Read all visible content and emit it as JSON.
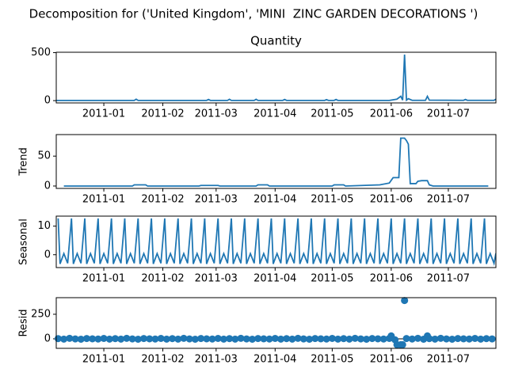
{
  "title": "Decomposition for ('United Kingdom', 'MINI  ZINC GARDEN DECORATIONS ')",
  "chart_data": [
    {
      "type": "line",
      "title": "Quantity",
      "color": "#1f77b4",
      "x": [
        -25,
        16,
        17,
        18,
        54,
        55,
        56,
        65,
        66,
        67,
        79,
        80,
        81,
        94,
        95,
        96,
        116,
        117,
        118,
        121,
        122,
        123,
        150,
        154,
        156,
        157,
        158,
        159,
        160,
        162,
        169,
        170,
        171,
        189,
        190,
        191,
        205,
        206
      ],
      "values": [
        2,
        2,
        15,
        2,
        2,
        12,
        2,
        2,
        14,
        2,
        2,
        14,
        2,
        2,
        12,
        2,
        2,
        10,
        2,
        2,
        12,
        2,
        2,
        15,
        45,
        5,
        480,
        5,
        20,
        3,
        3,
        45,
        5,
        3,
        12,
        3,
        3,
        15
      ],
      "xlim": [
        -25,
        206
      ],
      "ylim": [
        -24,
        504
      ],
      "xticks": [
        {
          "value": 0,
          "label": "2011-01"
        },
        {
          "value": 31,
          "label": "2011-02"
        },
        {
          "value": 59,
          "label": "2011-03"
        },
        {
          "value": 90,
          "label": "2011-04"
        },
        {
          "value": 120,
          "label": "2011-05"
        },
        {
          "value": 151,
          "label": "2011-06"
        },
        {
          "value": 181,
          "label": "2011-07"
        }
      ],
      "yticks": [
        0,
        500
      ]
    },
    {
      "type": "line",
      "y_label": "Trend",
      "color": "#1f77b4",
      "x": [
        -21,
        15,
        16,
        22,
        23,
        50,
        51,
        60,
        61,
        80,
        81,
        86,
        87,
        120,
        121,
        126,
        127,
        145,
        150,
        152,
        155,
        156,
        158,
        159,
        160,
        161,
        164,
        165,
        167,
        170,
        171,
        173,
        202
      ],
      "values": [
        0,
        0,
        2,
        2,
        0,
        0,
        1,
        1,
        0,
        0,
        2,
        2,
        0,
        0,
        2,
        2,
        0,
        2,
        5,
        14,
        14,
        80,
        80,
        76,
        70,
        4,
        4,
        8,
        9,
        9,
        2,
        0,
        0
      ],
      "xlim": [
        -25,
        206
      ],
      "ylim": [
        -4,
        86
      ],
      "xticks": [
        {
          "value": 0,
          "label": "2011-01"
        },
        {
          "value": 31,
          "label": "2011-02"
        },
        {
          "value": 59,
          "label": "2011-03"
        },
        {
          "value": 90,
          "label": "2011-04"
        },
        {
          "value": 120,
          "label": "2011-05"
        },
        {
          "value": 151,
          "label": "2011-06"
        },
        {
          "value": 181,
          "label": "2011-07"
        }
      ],
      "yticks": [
        0,
        50
      ]
    },
    {
      "type": "line",
      "y_label": "Seasonal",
      "color": "#1f77b4",
      "x": [
        -24,
        -23,
        -21,
        -19,
        -17,
        -16,
        -14,
        -12,
        -10,
        -9,
        -7,
        -5,
        -3,
        -2,
        0,
        2,
        4,
        5,
        7,
        9,
        11,
        12,
        14,
        16,
        18,
        19,
        21,
        23,
        25,
        26,
        28,
        30,
        32,
        33,
        35,
        37,
        39,
        40,
        42,
        44,
        46,
        47,
        49,
        51,
        53,
        54,
        56,
        58,
        60,
        61,
        63,
        65,
        67,
        68,
        70,
        72,
        74,
        75,
        77,
        79,
        81,
        82,
        84,
        86,
        88,
        89,
        91,
        93,
        95,
        96,
        98,
        100,
        102,
        103,
        105,
        107,
        109,
        110,
        112,
        114,
        116,
        117,
        119,
        121,
        123,
        124,
        126,
        128,
        130,
        131,
        133,
        135,
        137,
        138,
        140,
        142,
        144,
        145,
        147,
        149,
        151,
        152,
        154,
        156,
        158,
        159,
        161,
        163,
        165,
        166,
        168,
        170,
        172,
        173,
        175,
        177,
        179,
        180,
        182,
        184,
        186,
        187,
        189,
        191,
        193,
        194,
        196,
        198,
        200,
        201,
        203,
        205,
        206
      ],
      "values": [
        12.7,
        -3.2,
        0.4,
        -3,
        12.7,
        -3.2,
        0.4,
        -3,
        12.7,
        -3.2,
        0.4,
        -3,
        12.7,
        -3.2,
        0.4,
        -3,
        12.7,
        -3.2,
        0.4,
        -3,
        12.7,
        -3.2,
        0.4,
        -3,
        12.7,
        -3.2,
        0.4,
        -3,
        12.7,
        -3.2,
        0.4,
        -3,
        12.7,
        -3.2,
        0.4,
        -3,
        12.7,
        -3.2,
        0.4,
        -3,
        12.7,
        -3.2,
        0.4,
        -3,
        12.7,
        -3.2,
        0.4,
        -3,
        12.7,
        -3.2,
        0.4,
        -3,
        12.7,
        -3.2,
        0.4,
        -3,
        12.7,
        -3.2,
        0.4,
        -3,
        12.7,
        -3.2,
        0.4,
        -3,
        12.7,
        -3.2,
        0.4,
        -3,
        12.7,
        -3.2,
        0.4,
        -3,
        12.7,
        -3.2,
        0.4,
        -3,
        12.7,
        -3.2,
        0.4,
        -3,
        12.7,
        -3.2,
        0.4,
        -3,
        12.7,
        -3.2,
        0.4,
        -3,
        12.7,
        -3.2,
        0.4,
        -3,
        12.7,
        -3.2,
        0.4,
        -3,
        12.7,
        -3.2,
        0.4,
        -3,
        12.7,
        -3.2,
        0.4,
        -3,
        12.7,
        -3.2,
        0.4,
        -3,
        12.7,
        -3.2,
        0.4,
        -3,
        12.7,
        -3.2,
        0.4,
        -3,
        12.7,
        -3.2,
        0.4,
        -3,
        12.7,
        -3.2,
        0.4,
        -3,
        12.7,
        -3.2,
        0.4,
        -3,
        12.7,
        -3.2,
        0.4,
        -3,
        0.5
      ],
      "xlim": [
        -25,
        206
      ],
      "ylim": [
        -4.5,
        13.5
      ],
      "xticks": [
        {
          "value": 0,
          "label": "2011-01"
        },
        {
          "value": 31,
          "label": "2011-02"
        },
        {
          "value": 59,
          "label": "2011-03"
        },
        {
          "value": 90,
          "label": "2011-04"
        },
        {
          "value": 120,
          "label": "2011-05"
        },
        {
          "value": 151,
          "label": "2011-06"
        },
        {
          "value": 181,
          "label": "2011-07"
        }
      ],
      "yticks": [
        0,
        10
      ]
    },
    {
      "type": "scatter",
      "y_label": "Resid",
      "color": "#1f77b4",
      "hline": 0,
      "x": [
        -24,
        -21,
        -18,
        -15,
        -12,
        -9,
        -6,
        -3,
        0,
        3,
        6,
        9,
        12,
        15,
        18,
        21,
        24,
        27,
        30,
        33,
        36,
        39,
        42,
        45,
        48,
        51,
        54,
        57,
        60,
        63,
        66,
        69,
        72,
        75,
        78,
        81,
        84,
        87,
        90,
        93,
        96,
        99,
        102,
        105,
        108,
        111,
        114,
        117,
        120,
        123,
        126,
        129,
        132,
        135,
        138,
        141,
        144,
        147,
        150,
        151,
        153,
        154,
        156,
        157,
        158,
        159,
        162,
        165,
        168,
        170,
        171,
        174,
        177,
        180,
        183,
        186,
        189,
        192,
        195,
        198,
        201,
        204
      ],
      "values": [
        2,
        -3,
        5,
        -1,
        -4,
        3,
        0,
        -2,
        4,
        -3,
        2,
        -3,
        5,
        -1,
        -4,
        3,
        0,
        -2,
        4,
        -3,
        2,
        -3,
        5,
        -1,
        -4,
        3,
        0,
        -2,
        4,
        -3,
        2,
        -3,
        5,
        -1,
        -4,
        3,
        0,
        -2,
        4,
        -3,
        2,
        -3,
        5,
        -1,
        -4,
        3,
        0,
        -2,
        4,
        -3,
        2,
        -3,
        5,
        -1,
        -4,
        3,
        0,
        -2,
        4,
        30,
        -10,
        -60,
        -60,
        -60,
        390,
        3,
        -2,
        5,
        -4,
        30,
        2,
        -3,
        5,
        -1,
        -4,
        3,
        0,
        -2,
        4,
        -3,
        2,
        -1
      ],
      "xlim": [
        -25,
        206
      ],
      "ylim": [
        -97,
        419
      ],
      "xticks": [
        {
          "value": 0,
          "label": "2011-01"
        },
        {
          "value": 31,
          "label": "2011-02"
        },
        {
          "value": 59,
          "label": "2011-03"
        },
        {
          "value": 90,
          "label": "2011-04"
        },
        {
          "value": 120,
          "label": "2011-05"
        },
        {
          "value": 151,
          "label": "2011-06"
        },
        {
          "value": 181,
          "label": "2011-07"
        }
      ],
      "yticks": [
        0,
        250
      ]
    }
  ]
}
